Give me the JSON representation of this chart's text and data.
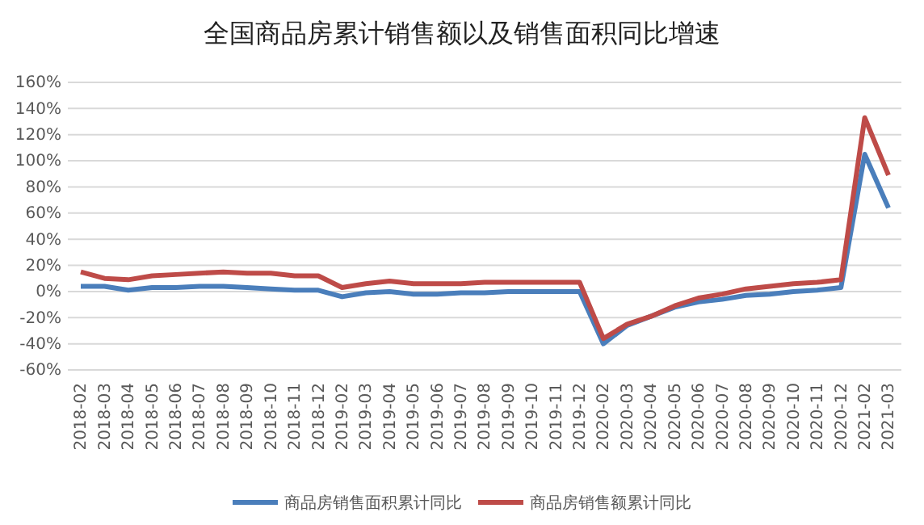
{
  "chart_data": {
    "type": "line",
    "title": "全国商品房累计销售额以及销售面积同比增速",
    "categories": [
      "2018-02",
      "2018-03",
      "2018-04",
      "2018-05",
      "2018-06",
      "2018-07",
      "2018-08",
      "2018-09",
      "2018-10",
      "2018-11",
      "2018-12",
      "2019-02",
      "2019-03",
      "2019-04",
      "2019-05",
      "2019-06",
      "2019-07",
      "2019-08",
      "2019-09",
      "2019-10",
      "2019-11",
      "2019-12",
      "2020-02",
      "2020-03",
      "2020-04",
      "2020-05",
      "2020-06",
      "2020-07",
      "2020-08",
      "2020-09",
      "2020-10",
      "2020-11",
      "2020-12",
      "2021-02",
      "2021-03"
    ],
    "series": [
      {
        "name": "商品房销售面积累计同比",
        "color": "#4a7ebb",
        "values": [
          4,
          4,
          1,
          3,
          3,
          4,
          4,
          3,
          2,
          1,
          1,
          -4,
          -1,
          0,
          -2,
          -2,
          -1,
          -1,
          0,
          0,
          0,
          0,
          -40,
          -26,
          -19,
          -12,
          -8,
          -6,
          -3,
          -2,
          0,
          1,
          3,
          105,
          64
        ]
      },
      {
        "name": "商品房销售额累计同比",
        "color": "#be4b48",
        "values": [
          15,
          10,
          9,
          12,
          13,
          14,
          15,
          14,
          14,
          12,
          12,
          3,
          6,
          8,
          6,
          6,
          6,
          7,
          7,
          7,
          7,
          7,
          -36,
          -25,
          -19,
          -11,
          -5,
          -2,
          2,
          4,
          6,
          7,
          9,
          133,
          89
        ]
      }
    ],
    "ylim": [
      -60,
      160
    ],
    "yticks": [
      {
        "value": -60,
        "label": "-60%"
      },
      {
        "value": -40,
        "label": "-40%"
      },
      {
        "value": -20,
        "label": "-20%"
      },
      {
        "value": 0,
        "label": "0%"
      },
      {
        "value": 20,
        "label": "20%"
      },
      {
        "value": 40,
        "label": "40%"
      },
      {
        "value": 60,
        "label": "60%"
      },
      {
        "value": 80,
        "label": "80%"
      },
      {
        "value": 100,
        "label": "100%"
      },
      {
        "value": 120,
        "label": "120%"
      },
      {
        "value": 140,
        "label": "140%"
      },
      {
        "value": 160,
        "label": "160%"
      }
    ],
    "grid": "y",
    "legend": "bottom",
    "marker": "none",
    "line_style": "solid"
  }
}
